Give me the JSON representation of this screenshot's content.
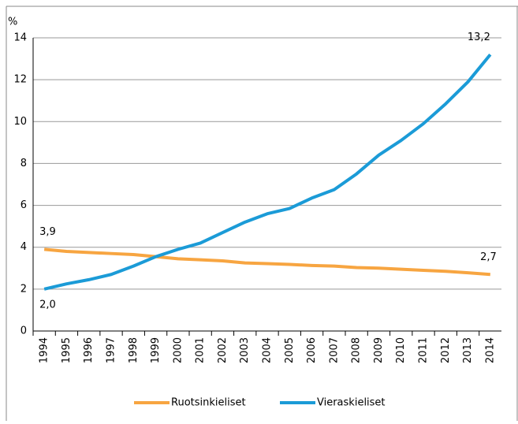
{
  "chart_data": {
    "type": "line",
    "y_unit": "%",
    "categories": [
      "1994",
      "1995",
      "1996",
      "1997",
      "1998",
      "1999",
      "2000",
      "2001",
      "2002",
      "2003",
      "2004",
      "2005",
      "2006",
      "2007",
      "2008",
      "2009",
      "2010",
      "2011",
      "2012",
      "2013",
      "2014"
    ],
    "series": [
      {
        "name": "Ruotsinkieliset",
        "color": "#f7a541",
        "values": [
          3.9,
          3.8,
          3.75,
          3.7,
          3.65,
          3.55,
          3.45,
          3.4,
          3.35,
          3.25,
          3.22,
          3.18,
          3.13,
          3.1,
          3.03,
          3.0,
          2.95,
          2.9,
          2.85,
          2.78,
          2.7
        ],
        "value_labels": [
          "3,9",
          null,
          null,
          null,
          null,
          null,
          null,
          null,
          null,
          null,
          null,
          null,
          null,
          null,
          null,
          null,
          null,
          null,
          null,
          null,
          "2,7"
        ]
      },
      {
        "name": "Vieraskieliset",
        "color": "#1b9bd7",
        "values": [
          2.0,
          2.25,
          2.45,
          2.7,
          3.1,
          3.55,
          3.9,
          4.2,
          4.7,
          5.2,
          5.6,
          5.85,
          6.35,
          6.75,
          7.5,
          8.4,
          9.1,
          9.9,
          10.85,
          11.9,
          13.2
        ],
        "value_labels": [
          "2,0",
          null,
          null,
          null,
          null,
          null,
          null,
          null,
          null,
          null,
          null,
          null,
          null,
          null,
          null,
          null,
          null,
          null,
          null,
          null,
          "13,2"
        ]
      }
    ],
    "ylim": [
      0,
      14
    ],
    "yticks": [
      0,
      2,
      4,
      6,
      8,
      10,
      12,
      14
    ],
    "grid": true,
    "legend": "bottom"
  }
}
